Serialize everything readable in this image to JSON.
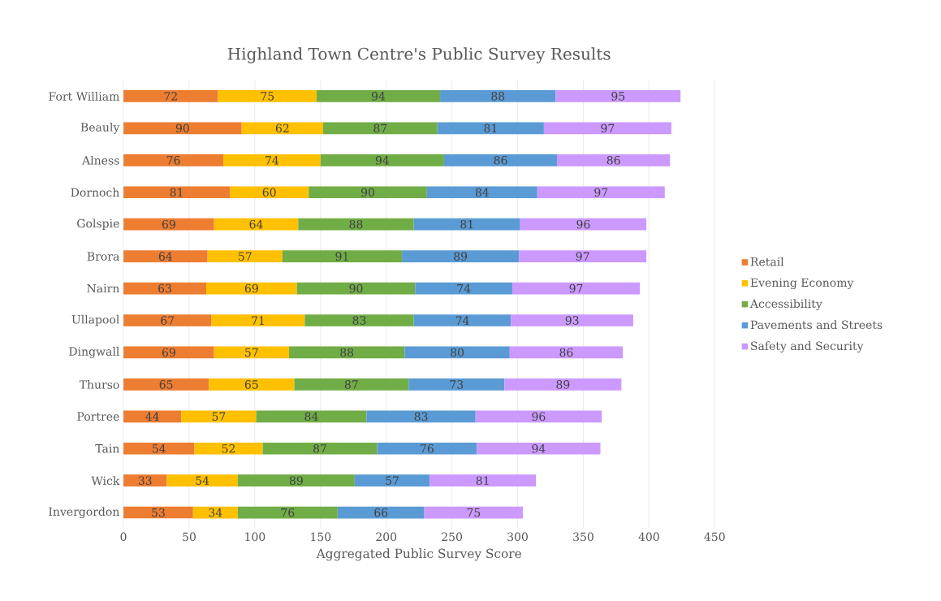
{
  "chart_data": {
    "type": "bar",
    "orientation": "horizontal",
    "stacked": true,
    "title": "Highland Town Centre's Public Survey Results",
    "xlabel": "Aggregated Public Survey Score",
    "categories": [
      "Fort William",
      "Beauly",
      "Alness",
      "Dornoch",
      "Golspie",
      "Brora",
      "Nairn",
      "Ullapool",
      "Dingwall",
      "Thurso",
      "Portree",
      "Tain",
      "Wick",
      "Invergordon"
    ],
    "series": [
      {
        "name": "Retail",
        "color": "#ed7d31",
        "values": [
          72,
          90,
          76,
          81,
          69,
          64,
          63,
          67,
          69,
          65,
          44,
          54,
          33,
          53
        ]
      },
      {
        "name": "Evening Economy",
        "color": "#ffc000",
        "values": [
          75,
          62,
          74,
          60,
          64,
          57,
          69,
          71,
          57,
          65,
          57,
          52,
          54,
          34
        ]
      },
      {
        "name": "Accessibility",
        "color": "#70ad47",
        "values": [
          94,
          87,
          94,
          90,
          88,
          91,
          90,
          83,
          88,
          87,
          84,
          87,
          89,
          76
        ]
      },
      {
        "name": "Pavements and Streets",
        "color": "#5b9bd5",
        "values": [
          88,
          81,
          86,
          84,
          81,
          89,
          74,
          74,
          80,
          73,
          83,
          76,
          57,
          66
        ]
      },
      {
        "name": "Safety and Security",
        "color": "#cc99ff",
        "values": [
          95,
          97,
          86,
          97,
          96,
          97,
          97,
          93,
          86,
          89,
          96,
          94,
          81,
          75
        ]
      }
    ],
    "xlim": [
      0,
      450
    ],
    "xticks": [
      0,
      50,
      100,
      150,
      200,
      250,
      300,
      350,
      400,
      450
    ],
    "grid": "x",
    "legend": "right",
    "data_labels": true
  }
}
